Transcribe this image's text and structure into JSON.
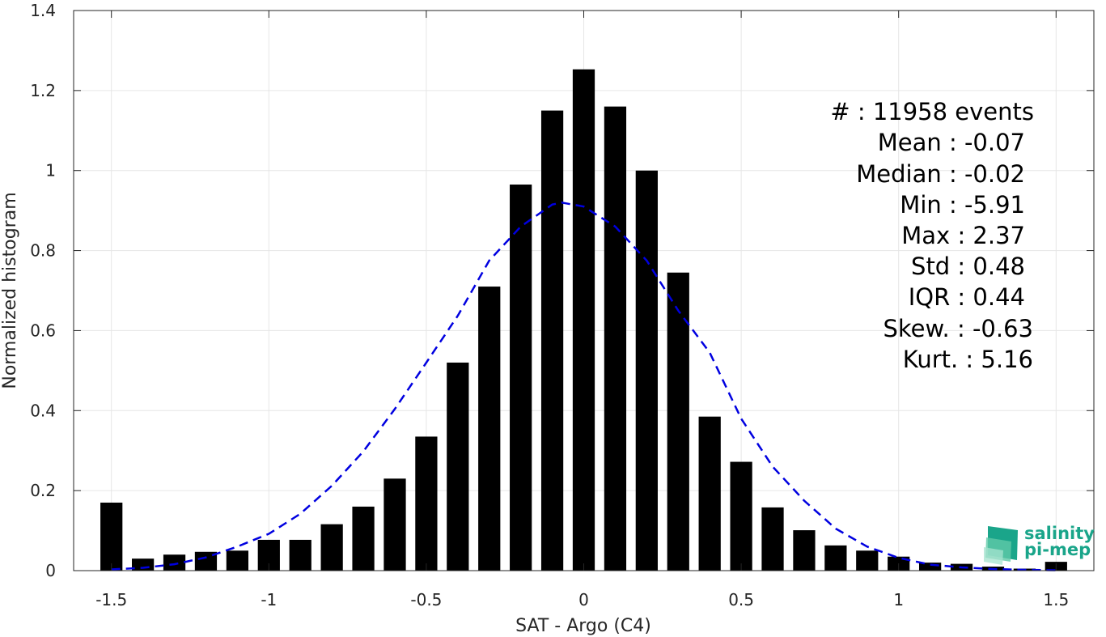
{
  "chart_data": {
    "type": "bar",
    "title": "",
    "xlabel": "SAT - Argo (C4)",
    "ylabel": "Normalized histogram",
    "xlim": [
      -1.62,
      1.62
    ],
    "ylim": [
      0,
      1.4
    ],
    "grid": true,
    "xticks": [
      -1.5,
      -1,
      -0.5,
      0,
      0.5,
      1,
      1.5
    ],
    "xtick_labels": [
      "-1.5",
      "-1",
      "-0.5",
      "0",
      "0.5",
      "1",
      "1.5"
    ],
    "yticks": [
      0,
      0.2,
      0.4,
      0.6,
      0.8,
      1,
      1.2,
      1.4
    ],
    "ytick_labels": [
      "0",
      "0.2",
      "0.4",
      "0.6",
      "0.8",
      "1",
      "1.2",
      "1.4"
    ],
    "bar_width": 0.07,
    "bars": {
      "x": [
        -1.5,
        -1.4,
        -1.3,
        -1.2,
        -1.1,
        -1.0,
        -0.9,
        -0.8,
        -0.7,
        -0.6,
        -0.5,
        -0.4,
        -0.3,
        -0.2,
        -0.1,
        0.0,
        0.1,
        0.2,
        0.3,
        0.4,
        0.5,
        0.6,
        0.7,
        0.8,
        0.9,
        1.0,
        1.1,
        1.2,
        1.3,
        1.4,
        1.5
      ],
      "values": [
        0.17,
        0.03,
        0.04,
        0.047,
        0.05,
        0.077,
        0.077,
        0.116,
        0.16,
        0.23,
        0.335,
        0.52,
        0.71,
        0.965,
        1.15,
        1.253,
        1.16,
        1.0,
        0.745,
        0.385,
        0.272,
        0.158,
        0.101,
        0.063,
        0.05,
        0.035,
        0.02,
        0.017,
        0.01,
        0.005,
        0.022
      ],
      "color": "#000000"
    },
    "fit_curve": {
      "style": "dashed",
      "color": "#0000e0",
      "x": [
        -1.5,
        -1.4,
        -1.3,
        -1.2,
        -1.1,
        -1.0,
        -0.9,
        -0.8,
        -0.7,
        -0.6,
        -0.5,
        -0.4,
        -0.3,
        -0.2,
        -0.1,
        -0.07,
        0.0,
        0.1,
        0.2,
        0.3,
        0.4,
        0.5,
        0.6,
        0.7,
        0.8,
        0.9,
        1.0,
        1.1,
        1.2,
        1.3,
        1.4,
        1.5
      ],
      "y": [
        0.003,
        0.007,
        0.016,
        0.033,
        0.06,
        0.092,
        0.142,
        0.212,
        0.298,
        0.404,
        0.52,
        0.637,
        0.775,
        0.86,
        0.915,
        0.92,
        0.91,
        0.86,
        0.775,
        0.65,
        0.545,
        0.38,
        0.26,
        0.175,
        0.105,
        0.06,
        0.032,
        0.015,
        0.008,
        0.004,
        0.002,
        0.001
      ]
    },
    "annotations": [
      "#  : 11958 events",
      "Mean : -0.07",
      "Median : -0.02",
      "Min : -5.91",
      "Max : 2.37",
      "Std : 0.48",
      "IQR : 0.44",
      "Skew. : -0.63",
      "Kurt. : 5.16"
    ]
  },
  "logo": {
    "line1": "salinity",
    "line2": "pi-mep",
    "color": "#1aa58a"
  }
}
